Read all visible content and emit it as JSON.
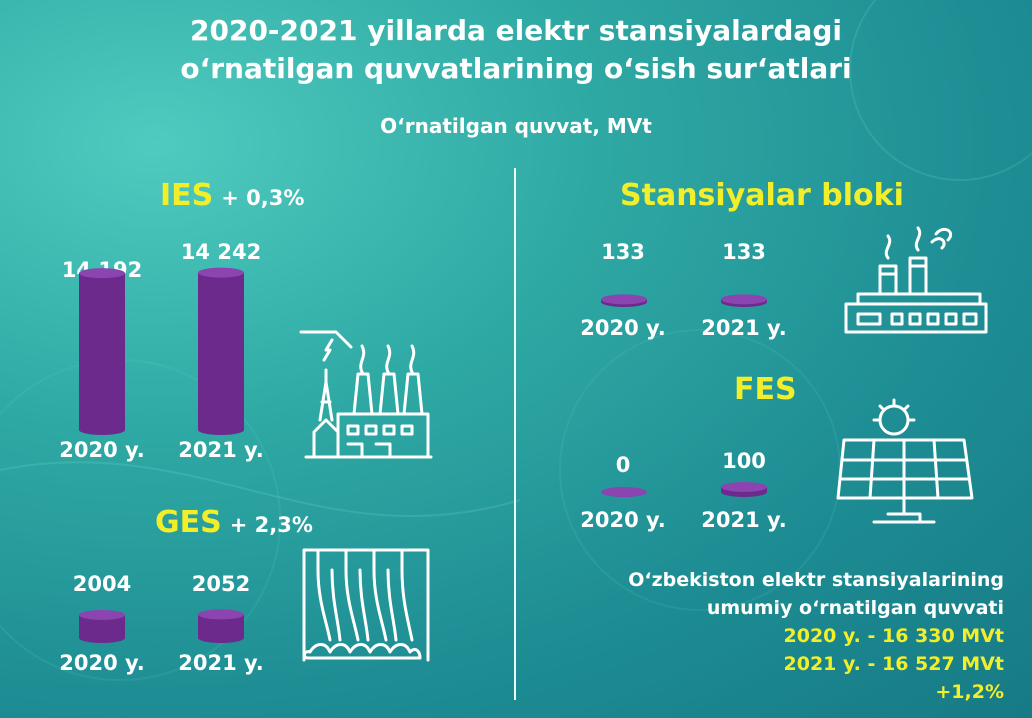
{
  "title_line1": "2020-2021 yillarda elektr stansiyalardagi",
  "title_line2": "o‘rnatilgan quvvatlarining o‘sish sur‘atlari",
  "subtitle": "O‘rnatilgan quvvat, MVt",
  "colors": {
    "accent": "#f3ee2a",
    "bar": "#6b2a8c",
    "bar_top": "#8b44b0"
  },
  "chart_data": [
    {
      "type": "bar",
      "name": "IES",
      "change": "+ 0,3%",
      "categories": [
        "2020 y.",
        "2021 y."
      ],
      "values": [
        14192,
        14242
      ],
      "value_labels": [
        "14 192",
        "14 242"
      ]
    },
    {
      "type": "bar",
      "name": "GES",
      "change": "+ 2,3%",
      "categories": [
        "2020 y.",
        "2021 y."
      ],
      "values": [
        2004,
        2052
      ],
      "value_labels": [
        "2004",
        "2052"
      ]
    },
    {
      "type": "bar",
      "name": "Stansiyalar bloki",
      "categories": [
        "2020 y.",
        "2021 y."
      ],
      "values": [
        133,
        133
      ],
      "value_labels": [
        "133",
        "133"
      ]
    },
    {
      "type": "bar",
      "name": "FES",
      "categories": [
        "2020 y.",
        "2021 y."
      ],
      "values": [
        0,
        100
      ],
      "value_labels": [
        "0",
        "100"
      ]
    }
  ],
  "totals": {
    "line1": "O‘zbekiston elektr stansiyalarining",
    "line2": "umumiy o‘rnatilgan quvvati",
    "line3": "2020 y. - 16 330 MVt",
    "line4": "2021 y. - 16 527 MVt",
    "line5": "+1,2%"
  },
  "icons": [
    "thermal-power-plant-icon",
    "hydro-power-plant-icon",
    "factory-icon",
    "solar-panel-icon"
  ]
}
